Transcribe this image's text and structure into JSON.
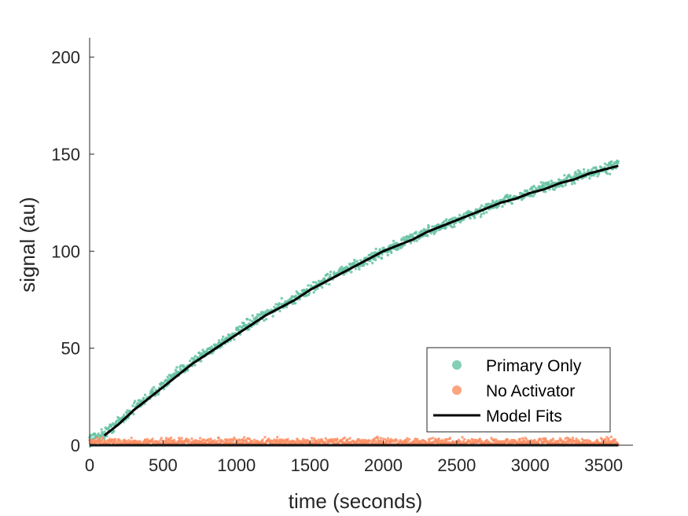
{
  "chart_data": {
    "type": "scatter",
    "title": "",
    "xlabel": "time (seconds)",
    "ylabel": "signal (au)",
    "xlim": [
      0,
      3700
    ],
    "ylim": [
      0,
      210
    ],
    "xticks": [
      0,
      500,
      1000,
      1500,
      2000,
      2500,
      3000,
      3500
    ],
    "yticks": [
      0,
      50,
      100,
      150,
      200
    ],
    "grid": false,
    "legend_position": "bottom-right",
    "series": [
      {
        "name": "Primary Only",
        "kind": "scatter",
        "color": "#66c2a5",
        "x": [
          0,
          100,
          200,
          300,
          400,
          500,
          600,
          700,
          800,
          900,
          1000,
          1100,
          1200,
          1300,
          1400,
          1500,
          1600,
          1700,
          1800,
          1900,
          2000,
          2100,
          2200,
          2300,
          2400,
          2500,
          2600,
          2700,
          2800,
          2900,
          3000,
          3100,
          3200,
          3300,
          3400,
          3500,
          3600
        ],
        "y": [
          3,
          6,
          12,
          19,
          25,
          31,
          37,
          43,
          48,
          53,
          58,
          63,
          67,
          72,
          76,
          80,
          85,
          89,
          92,
          96,
          100,
          103,
          107,
          110,
          113,
          116,
          119,
          122,
          125,
          128,
          130,
          133,
          135,
          138,
          140,
          142,
          145
        ],
        "noise": 2
      },
      {
        "name": "No Activator",
        "kind": "scatter",
        "color": "#fc8d62",
        "x": [
          0,
          3600
        ],
        "y": [
          1.5,
          1.5
        ],
        "noise": 1.5
      },
      {
        "name": "Model Fits",
        "kind": "line",
        "color": "#000000",
        "curves": [
          {
            "x": [
              100,
              200,
              300,
              400,
              500,
              600,
              700,
              800,
              900,
              1000,
              1100,
              1200,
              1300,
              1400,
              1500,
              1600,
              1700,
              1800,
              1900,
              2000,
              2100,
              2200,
              2300,
              2400,
              2500,
              2600,
              2700,
              2800,
              2900,
              3000,
              3100,
              3200,
              3300,
              3400,
              3500,
              3600
            ],
            "y": [
              5,
              11,
              18,
              24,
              30,
              36,
              42,
              47,
              52,
              57,
              62,
              67,
              71,
              75,
              80,
              84,
              88,
              92,
              96,
              100,
              103,
              106,
              110,
              113,
              116,
              119,
              122,
              125,
              127,
              130,
              132,
              135,
              137,
              140,
              142,
              144
            ]
          },
          {
            "x": [
              0,
              3600
            ],
            "y": [
              0,
              0
            ]
          }
        ]
      }
    ]
  }
}
